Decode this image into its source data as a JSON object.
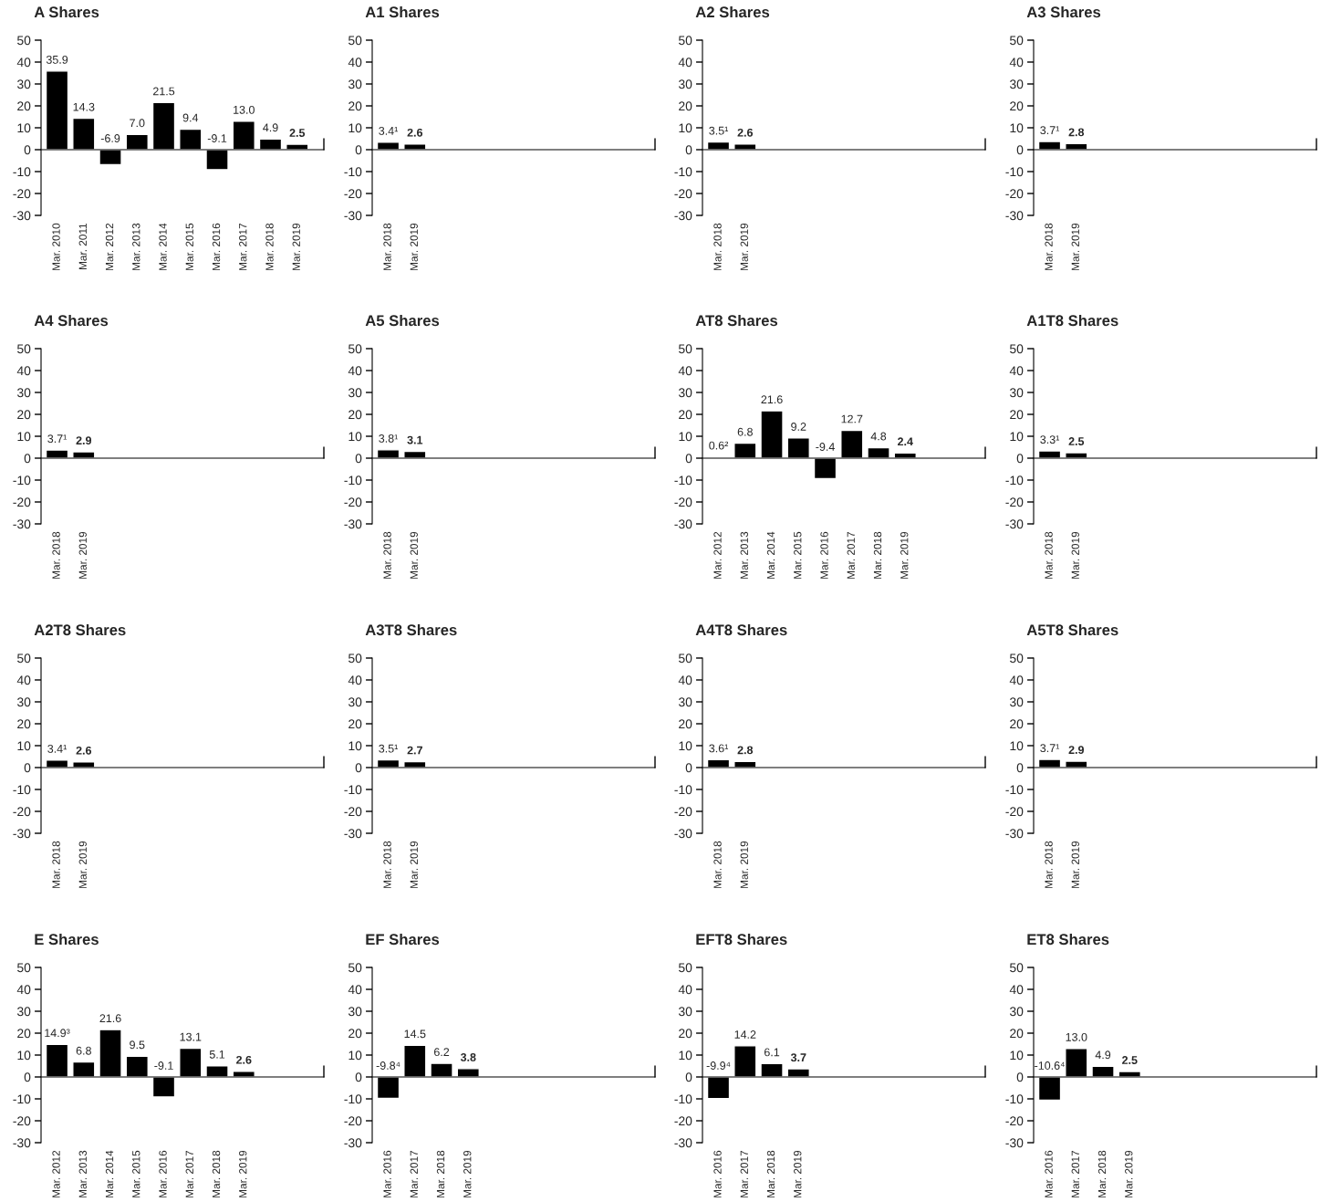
{
  "chart_data": [
    {
      "type": "bar",
      "title": "A Shares",
      "categories": [
        "Mar. 2010",
        "Mar. 2011",
        "Mar. 2012",
        "Mar. 2013",
        "Mar. 2014",
        "Mar. 2015",
        "Mar. 2016",
        "Mar. 2017",
        "Mar. 2018",
        "Mar. 2019"
      ],
      "values": [
        35.9,
        14.3,
        -6.9,
        7.0,
        21.5,
        9.4,
        -9.1,
        13.0,
        4.9,
        2.5
      ],
      "value_labels": [
        "35.9",
        "14.3",
        "-6.9",
        "7.0",
        "21.5",
        "9.4",
        "-9.1",
        "13.0",
        "4.9",
        "2.5"
      ],
      "color": "#000000",
      "ylim": [
        -30,
        50
      ],
      "yticks": [
        -30,
        -20,
        -10,
        0,
        10,
        20,
        30,
        40,
        50
      ]
    },
    {
      "type": "bar",
      "title": "A1 Shares",
      "categories": [
        "Mar. 2018",
        "Mar. 2019"
      ],
      "values": [
        3.4,
        2.6
      ],
      "value_labels": [
        "3.4¹",
        "2.6"
      ],
      "color": "#000000",
      "ylim": [
        -30,
        50
      ],
      "yticks": [
        -30,
        -20,
        -10,
        0,
        10,
        20,
        30,
        40,
        50
      ]
    },
    {
      "type": "bar",
      "title": "A2 Shares",
      "categories": [
        "Mar. 2018",
        "Mar. 2019"
      ],
      "values": [
        3.5,
        2.6
      ],
      "value_labels": [
        "3.5¹",
        "2.6"
      ],
      "color": "#000000",
      "ylim": [
        -30,
        50
      ],
      "yticks": [
        -30,
        -20,
        -10,
        0,
        10,
        20,
        30,
        40,
        50
      ]
    },
    {
      "type": "bar",
      "title": "A3 Shares",
      "categories": [
        "Mar. 2018",
        "Mar. 2019"
      ],
      "values": [
        3.7,
        2.8
      ],
      "value_labels": [
        "3.7¹",
        "2.8"
      ],
      "color": "#000000",
      "ylim": [
        -30,
        50
      ],
      "yticks": [
        -30,
        -20,
        -10,
        0,
        10,
        20,
        30,
        40,
        50
      ]
    },
    {
      "type": "bar",
      "title": "A4 Shares",
      "categories": [
        "Mar. 2018",
        "Mar. 2019"
      ],
      "values": [
        3.7,
        2.9
      ],
      "value_labels": [
        "3.7¹",
        "2.9"
      ],
      "color": "#000000",
      "ylim": [
        -30,
        50
      ],
      "yticks": [
        -30,
        -20,
        -10,
        0,
        10,
        20,
        30,
        40,
        50
      ]
    },
    {
      "type": "bar",
      "title": "A5 Shares",
      "categories": [
        "Mar. 2018",
        "Mar. 2019"
      ],
      "values": [
        3.8,
        3.1
      ],
      "value_labels": [
        "3.8¹",
        "3.1"
      ],
      "color": "#000000",
      "ylim": [
        -30,
        50
      ],
      "yticks": [
        -30,
        -20,
        -10,
        0,
        10,
        20,
        30,
        40,
        50
      ]
    },
    {
      "type": "bar",
      "title": "AT8 Shares",
      "categories": [
        "Mar. 2012",
        "Mar. 2013",
        "Mar. 2014",
        "Mar. 2015",
        "Mar. 2016",
        "Mar. 2017",
        "Mar. 2018",
        "Mar. 2019"
      ],
      "values": [
        0.6,
        6.8,
        21.6,
        9.2,
        -9.4,
        12.7,
        4.8,
        2.4
      ],
      "value_labels": [
        "0.6²",
        "6.8",
        "21.6",
        "9.2",
        "-9.4",
        "12.7",
        "4.8",
        "2.4"
      ],
      "color": "#000000",
      "ylim": [
        -30,
        50
      ],
      "yticks": [
        -30,
        -20,
        -10,
        0,
        10,
        20,
        30,
        40,
        50
      ]
    },
    {
      "type": "bar",
      "title": "A1T8 Shares",
      "categories": [
        "Mar. 2018",
        "Mar. 2019"
      ],
      "values": [
        3.3,
        2.5
      ],
      "value_labels": [
        "3.3¹",
        "2.5"
      ],
      "color": "#000000",
      "ylim": [
        -30,
        50
      ],
      "yticks": [
        -30,
        -20,
        -10,
        0,
        10,
        20,
        30,
        40,
        50
      ]
    },
    {
      "type": "bar",
      "title": "A2T8 Shares",
      "categories": [
        "Mar. 2018",
        "Mar. 2019"
      ],
      "values": [
        3.4,
        2.6
      ],
      "value_labels": [
        "3.4¹",
        "2.6"
      ],
      "color": "#000000",
      "ylim": [
        -30,
        50
      ],
      "yticks": [
        -30,
        -20,
        -10,
        0,
        10,
        20,
        30,
        40,
        50
      ]
    },
    {
      "type": "bar",
      "title": "A3T8 Shares",
      "categories": [
        "Mar. 2018",
        "Mar. 2019"
      ],
      "values": [
        3.5,
        2.7
      ],
      "value_labels": [
        "3.5¹",
        "2.7"
      ],
      "color": "#000000",
      "ylim": [
        -30,
        50
      ],
      "yticks": [
        -30,
        -20,
        -10,
        0,
        10,
        20,
        30,
        40,
        50
      ]
    },
    {
      "type": "bar",
      "title": "A4T8 Shares",
      "categories": [
        "Mar. 2018",
        "Mar. 2019"
      ],
      "values": [
        3.6,
        2.8
      ],
      "value_labels": [
        "3.6¹",
        "2.8"
      ],
      "color": "#000000",
      "ylim": [
        -30,
        50
      ],
      "yticks": [
        -30,
        -20,
        -10,
        0,
        10,
        20,
        30,
        40,
        50
      ]
    },
    {
      "type": "bar",
      "title": "A5T8 Shares",
      "categories": [
        "Mar. 2018",
        "Mar. 2019"
      ],
      "values": [
        3.7,
        2.9
      ],
      "value_labels": [
        "3.7¹",
        "2.9"
      ],
      "color": "#000000",
      "ylim": [
        -30,
        50
      ],
      "yticks": [
        -30,
        -20,
        -10,
        0,
        10,
        20,
        30,
        40,
        50
      ]
    },
    {
      "type": "bar",
      "title": "E Shares",
      "categories": [
        "Mar. 2012",
        "Mar. 2013",
        "Mar. 2014",
        "Mar. 2015",
        "Mar. 2016",
        "Mar. 2017",
        "Mar. 2018",
        "Mar. 2019"
      ],
      "values": [
        14.9,
        6.8,
        21.6,
        9.5,
        -9.1,
        13.1,
        5.1,
        2.6
      ],
      "value_labels": [
        "14.9³",
        "6.8",
        "21.6",
        "9.5",
        "-9.1",
        "13.1",
        "5.1",
        "2.6"
      ],
      "color": "#000000",
      "ylim": [
        -30,
        50
      ],
      "yticks": [
        -30,
        -20,
        -10,
        0,
        10,
        20,
        30,
        40,
        50
      ]
    },
    {
      "type": "bar",
      "title": "EF Shares",
      "categories": [
        "Mar. 2016",
        "Mar. 2017",
        "Mar. 2018",
        "Mar. 2019"
      ],
      "values": [
        -9.8,
        14.5,
        6.2,
        3.8
      ],
      "value_labels": [
        "-9.8⁴",
        "14.5",
        "6.2",
        "3.8"
      ],
      "color": "#000000",
      "ylim": [
        -30,
        50
      ],
      "yticks": [
        -30,
        -20,
        -10,
        0,
        10,
        20,
        30,
        40,
        50
      ]
    },
    {
      "type": "bar",
      "title": "EFT8 Shares",
      "categories": [
        "Mar. 2016",
        "Mar. 2017",
        "Mar. 2018",
        "Mar. 2019"
      ],
      "values": [
        -9.9,
        14.2,
        6.1,
        3.7
      ],
      "value_labels": [
        "-9.9⁴",
        "14.2",
        "6.1",
        "3.7"
      ],
      "color": "#000000",
      "ylim": [
        -30,
        50
      ],
      "yticks": [
        -30,
        -20,
        -10,
        0,
        10,
        20,
        30,
        40,
        50
      ]
    },
    {
      "type": "bar",
      "title": "ET8 Shares",
      "categories": [
        "Mar. 2016",
        "Mar. 2017",
        "Mar. 2018",
        "Mar. 2019"
      ],
      "values": [
        -10.6,
        13.0,
        4.9,
        2.5
      ],
      "value_labels": [
        "-10.6⁴",
        "13.0",
        "4.9",
        "2.5"
      ],
      "color": "#000000",
      "ylim": [
        -30,
        50
      ],
      "yticks": [
        -30,
        -20,
        -10,
        0,
        10,
        20,
        30,
        40,
        50
      ]
    }
  ]
}
